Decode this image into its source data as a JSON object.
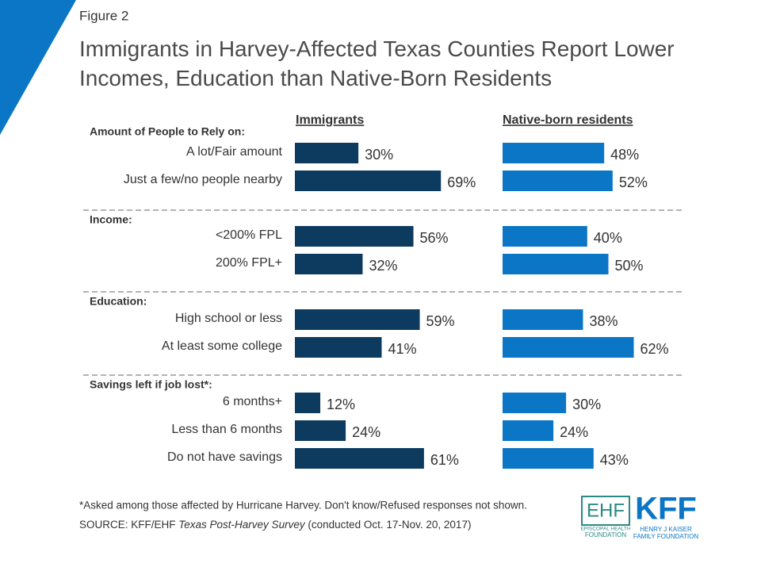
{
  "figure_label": "Figure 2",
  "chart_data": {
    "type": "bar",
    "orientation": "horizontal",
    "title": "Immigrants in Harvey-Affected Texas Counties Report Lower Incomes, Education than Native-Born Residents",
    "groups": [
      {
        "name": "Amount of People to Rely on:",
        "categories": [
          "A lot/Fair amount",
          "Just a few/no people nearby"
        ]
      },
      {
        "name": "Income:",
        "categories": [
          "<200% FPL",
          "200% FPL+"
        ]
      },
      {
        "name": "Education:",
        "categories": [
          "High school or less",
          "At least some college"
        ]
      },
      {
        "name": "Savings left if job lost*:",
        "categories": [
          "6 months+",
          "Less than 6 months",
          "Do not have savings"
        ]
      }
    ],
    "series": [
      {
        "name": "Immigrants",
        "color": "#0d3a5f",
        "values": [
          [
            30,
            69
          ],
          [
            56,
            32
          ],
          [
            59,
            41
          ],
          [
            12,
            24,
            61
          ]
        ],
        "value_labels": [
          [
            "30%",
            "69%"
          ],
          [
            "56%",
            "32%"
          ],
          [
            "59%",
            "41%"
          ],
          [
            "12%",
            "24%",
            "61%"
          ]
        ]
      },
      {
        "name": "Native-born residents",
        "color": "#0b76c6",
        "values": [
          [
            48,
            52
          ],
          [
            40,
            50
          ],
          [
            38,
            62
          ],
          [
            30,
            24,
            43
          ]
        ],
        "value_labels": [
          [
            "48%",
            "52%"
          ],
          [
            "40%",
            "50%"
          ],
          [
            "38%",
            "62%"
          ],
          [
            "30%",
            "24%",
            "43%"
          ]
        ]
      }
    ]
  },
  "footnote": "*Asked among those affected by Hurricane Harvey.  Don't know/Refused responses not shown.",
  "source": {
    "prefix": "SOURCE: KFF/EHF ",
    "italic": "Texas Post-Harvey Survey",
    "suffix": " (conducted Oct. 17-Nov. 20, 2017)"
  },
  "logos": {
    "ehf": "EHF",
    "ehf_line1": "EPISCOPAL HEALTH",
    "ehf_line2": "FOUNDATION",
    "kff": "KFF",
    "kff_line1": "HENRY J KAISER",
    "kff_line2": "FAMILY FOUNDATION"
  }
}
